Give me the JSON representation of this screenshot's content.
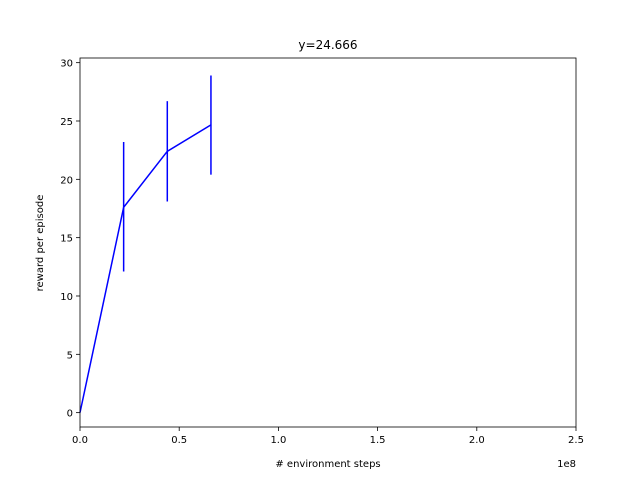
{
  "chart_data": {
    "type": "line",
    "title": "y=24.666",
    "xlabel": "# environment steps",
    "ylabel": "reward per episode",
    "x_offset_label": "1e8",
    "xlim": [
      0,
      2.5
    ],
    "ylim": [
      -1.23,
      30.4
    ],
    "x_ticks": [
      0,
      0.5,
      1.0,
      1.5,
      2.0,
      2.5
    ],
    "x_tick_labels": [
      "0.0",
      "0.5",
      "1.0",
      "1.5",
      "2.0",
      "2.5"
    ],
    "y_ticks": [
      0,
      5,
      10,
      15,
      20,
      25,
      30
    ],
    "y_tick_labels": [
      "0",
      "5",
      "10",
      "15",
      "20",
      "25",
      "30"
    ],
    "grid": false,
    "series": [
      {
        "color": "#0000ff",
        "x": [
          0.0,
          0.22,
          0.44,
          0.66
        ],
        "y": [
          0.0,
          17.6,
          22.4,
          24.666
        ],
        "error_low": [
          null,
          12.1,
          18.1,
          20.4
        ],
        "error_high": [
          null,
          23.2,
          26.7,
          28.9
        ]
      }
    ]
  }
}
